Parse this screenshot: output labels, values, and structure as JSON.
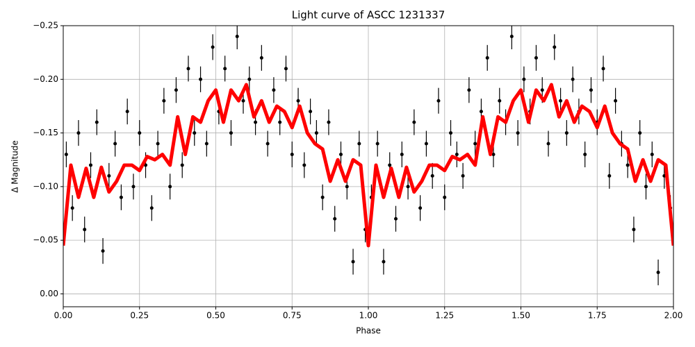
{
  "chart_data": {
    "type": "scatter",
    "title": "Light curve of ASCC 1231337",
    "xlabel": "Phase",
    "ylabel": "Δ Magnitude",
    "xlim": [
      0,
      2
    ],
    "ylim": [
      0.012,
      -0.25
    ],
    "grid": true,
    "xticks": [
      {
        "value": 0,
        "label": "0.00"
      },
      {
        "value": 0.25,
        "label": "0.25"
      },
      {
        "value": 0.5,
        "label": "0.50"
      },
      {
        "value": 0.75,
        "label": "0.75"
      },
      {
        "value": 1,
        "label": "1.00"
      },
      {
        "value": 1.25,
        "label": "1.25"
      },
      {
        "value": 1.5,
        "label": "1.50"
      },
      {
        "value": 1.75,
        "label": "1.75"
      },
      {
        "value": 2,
        "label": "2.00"
      }
    ],
    "yticks": [
      {
        "value": -0.25,
        "label": "−0.25"
      },
      {
        "value": -0.2,
        "label": "−0.20"
      },
      {
        "value": -0.15,
        "label": "−0.15"
      },
      {
        "value": -0.1,
        "label": "−0.10"
      },
      {
        "value": -0.05,
        "label": "−0.05"
      },
      {
        "value": 0,
        "label": "0.00"
      }
    ],
    "series": [
      {
        "color": "#000000",
        "yerr": 0.012,
        "x": [
          0.01,
          0.03,
          0.05,
          0.07,
          0.09,
          0.11,
          0.13,
          0.15,
          0.17,
          0.19,
          0.21,
          0.23,
          0.25,
          0.27,
          0.29,
          0.31,
          0.33,
          0.35,
          0.37,
          0.39,
          0.41,
          0.43,
          0.45,
          0.47,
          0.49,
          0.51,
          0.53,
          0.55,
          0.57,
          0.59,
          0.61,
          0.63,
          0.65,
          0.67,
          0.69,
          0.71,
          0.73,
          0.75,
          0.77,
          0.79,
          0.81,
          0.83,
          0.85,
          0.87,
          0.89,
          0.91,
          0.93,
          0.95,
          0.97,
          0.99,
          1.01,
          1.03,
          1.05,
          1.07,
          1.09,
          1.11,
          1.13,
          1.15,
          1.17,
          1.19,
          1.21,
          1.23,
          1.25,
          1.27,
          1.29,
          1.31,
          1.33,
          1.35,
          1.37,
          1.39,
          1.41,
          1.43,
          1.45,
          1.47,
          1.49,
          1.51,
          1.53,
          1.55,
          1.57,
          1.59,
          1.61,
          1.63,
          1.65,
          1.67,
          1.69,
          1.71,
          1.73,
          1.75,
          1.77,
          1.79,
          1.81,
          1.83,
          1.85,
          1.87,
          1.89,
          1.91,
          1.93,
          1.95,
          1.97,
          1.99
        ],
        "y": [
          -0.13,
          -0.08,
          -0.15,
          -0.06,
          -0.12,
          -0.16,
          -0.04,
          -0.11,
          -0.14,
          -0.09,
          -0.17,
          -0.1,
          -0.15,
          -0.12,
          -0.08,
          -0.14,
          -0.18,
          -0.1,
          -0.19,
          -0.12,
          -0.21,
          -0.15,
          -0.2,
          -0.14,
          -0.23,
          -0.17,
          -0.21,
          -0.15,
          -0.24,
          -0.18,
          -0.2,
          -0.16,
          -0.22,
          -0.14,
          -0.19,
          -0.16,
          -0.21,
          -0.13,
          -0.18,
          -0.12,
          -0.17,
          -0.15,
          -0.09,
          -0.16,
          -0.07,
          -0.13,
          -0.1,
          -0.03,
          -0.14,
          -0.06,
          -0.09,
          -0.14,
          -0.03,
          -0.12,
          -0.07,
          -0.13,
          -0.1,
          -0.16,
          -0.08,
          -0.14,
          -0.11,
          -0.18,
          -0.09,
          -0.15,
          -0.13,
          -0.11,
          -0.19,
          -0.14,
          -0.17,
          -0.22,
          -0.13,
          -0.18,
          -0.16,
          -0.24,
          -0.15,
          -0.2,
          -0.17,
          -0.22,
          -0.19,
          -0.14,
          -0.23,
          -0.18,
          -0.15,
          -0.2,
          -0.17,
          -0.13,
          -0.19,
          -0.16,
          -0.21,
          -0.11,
          -0.18,
          -0.14,
          -0.12,
          -0.06,
          -0.15,
          -0.1,
          -0.13,
          -0.02,
          -0.11,
          -0.08
        ]
      },
      {
        "type": "line",
        "color": "#ff0000",
        "x": [
          0,
          0.025,
          0.05,
          0.075,
          0.1,
          0.125,
          0.15,
          0.175,
          0.2,
          0.225,
          0.25,
          0.275,
          0.3,
          0.325,
          0.35,
          0.375,
          0.4,
          0.425,
          0.45,
          0.475,
          0.5,
          0.525,
          0.55,
          0.575,
          0.6,
          0.625,
          0.65,
          0.675,
          0.7,
          0.725,
          0.75,
          0.775,
          0.8,
          0.825,
          0.85,
          0.875,
          0.9,
          0.925,
          0.95,
          0.975,
          1,
          1.025,
          1.05,
          1.075,
          1.1,
          1.125,
          1.15,
          1.175,
          1.2,
          1.225,
          1.25,
          1.275,
          1.3,
          1.325,
          1.35,
          1.375,
          1.4,
          1.425,
          1.45,
          1.475,
          1.5,
          1.525,
          1.55,
          1.575,
          1.6,
          1.625,
          1.65,
          1.675,
          1.7,
          1.725,
          1.75,
          1.775,
          1.8,
          1.825,
          1.85,
          1.875,
          1.9,
          1.925,
          1.95,
          1.975,
          2
        ],
        "y": [
          -0.045,
          -0.12,
          -0.09,
          -0.117,
          -0.09,
          -0.118,
          -0.095,
          -0.105,
          -0.12,
          -0.12,
          -0.115,
          -0.128,
          -0.125,
          -0.13,
          -0.12,
          -0.165,
          -0.13,
          -0.165,
          -0.16,
          -0.18,
          -0.19,
          -0.16,
          -0.19,
          -0.18,
          -0.195,
          -0.165,
          -0.18,
          -0.16,
          -0.175,
          -0.17,
          -0.155,
          -0.175,
          -0.15,
          -0.14,
          -0.135,
          -0.105,
          -0.125,
          -0.105,
          -0.125,
          -0.12,
          -0.045,
          -0.12,
          -0.09,
          -0.117,
          -0.09,
          -0.118,
          -0.095,
          -0.105,
          -0.12,
          -0.12,
          -0.115,
          -0.128,
          -0.125,
          -0.13,
          -0.12,
          -0.165,
          -0.13,
          -0.165,
          -0.16,
          -0.18,
          -0.19,
          -0.16,
          -0.19,
          -0.18,
          -0.195,
          -0.165,
          -0.18,
          -0.16,
          -0.175,
          -0.17,
          -0.155,
          -0.175,
          -0.15,
          -0.14,
          -0.135,
          -0.105,
          -0.125,
          -0.105,
          -0.125,
          -0.12,
          -0.045
        ]
      }
    ]
  }
}
